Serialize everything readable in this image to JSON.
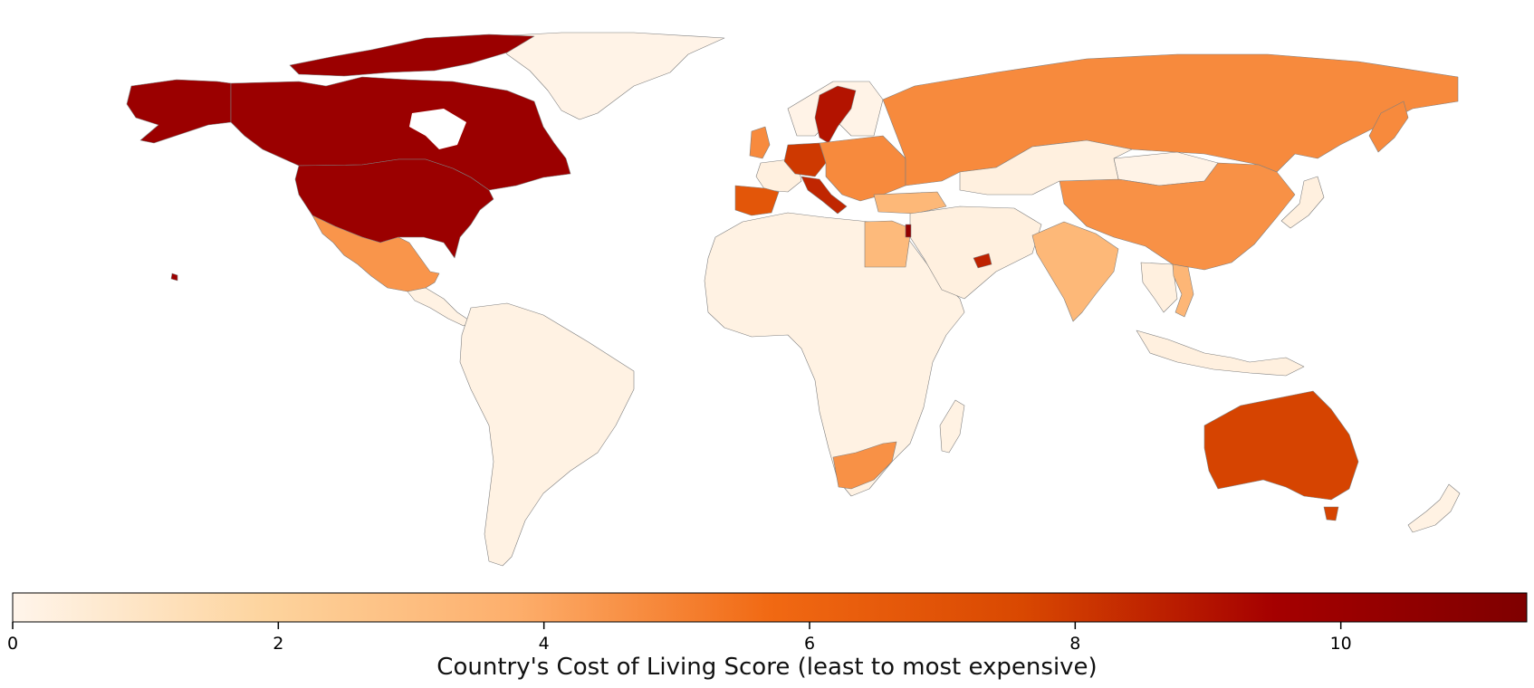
{
  "colorbar": {
    "label": "Country's Cost of Living Score (least to most expensive)",
    "min": 0,
    "max": 11.4,
    "ticks": [
      0,
      2,
      4,
      6,
      8,
      10
    ],
    "colormap": [
      "#fff5eb",
      "#fdd49e",
      "#fdae6b",
      "#f16913",
      "#d94801",
      "#a50000",
      "#7f0000"
    ]
  },
  "regions": [
    {
      "name": "United States",
      "score": 10
    },
    {
      "name": "Canada",
      "score": 10
    },
    {
      "name": "Alaska",
      "score": 10
    },
    {
      "name": "Greenland",
      "score": 0.1
    },
    {
      "name": "Mexico",
      "score": 4.5
    },
    {
      "name": "South America",
      "score": 0.2
    },
    {
      "name": "Africa",
      "score": 0.2
    },
    {
      "name": "Egypt",
      "score": 3.2
    },
    {
      "name": "South Africa",
      "score": 4.6
    },
    {
      "name": "Madagascar",
      "score": 0.2
    },
    {
      "name": "Spain",
      "score": 6.8
    },
    {
      "name": "Germany",
      "score": 8
    },
    {
      "name": "Italy",
      "score": 8.5
    },
    {
      "name": "Sweden",
      "score": 9
    },
    {
      "name": "Eastern Europe",
      "score": 4.8
    },
    {
      "name": "Russia",
      "score": 4.8
    },
    {
      "name": "China",
      "score": 4.6
    },
    {
      "name": "India",
      "score": 3.3
    },
    {
      "name": "Middle East",
      "score": 0.3
    },
    {
      "name": "United Arab Emirates",
      "score": 8.6
    },
    {
      "name": "Israel",
      "score": 10.5
    },
    {
      "name": "Southeast Asia",
      "score": 0.3
    },
    {
      "name": "Vietnam",
      "score": 3.4
    },
    {
      "name": "Australia",
      "score": 7.7
    },
    {
      "name": "New Zealand",
      "score": 0.2
    },
    {
      "name": "Mongolia",
      "score": 0.1
    }
  ]
}
